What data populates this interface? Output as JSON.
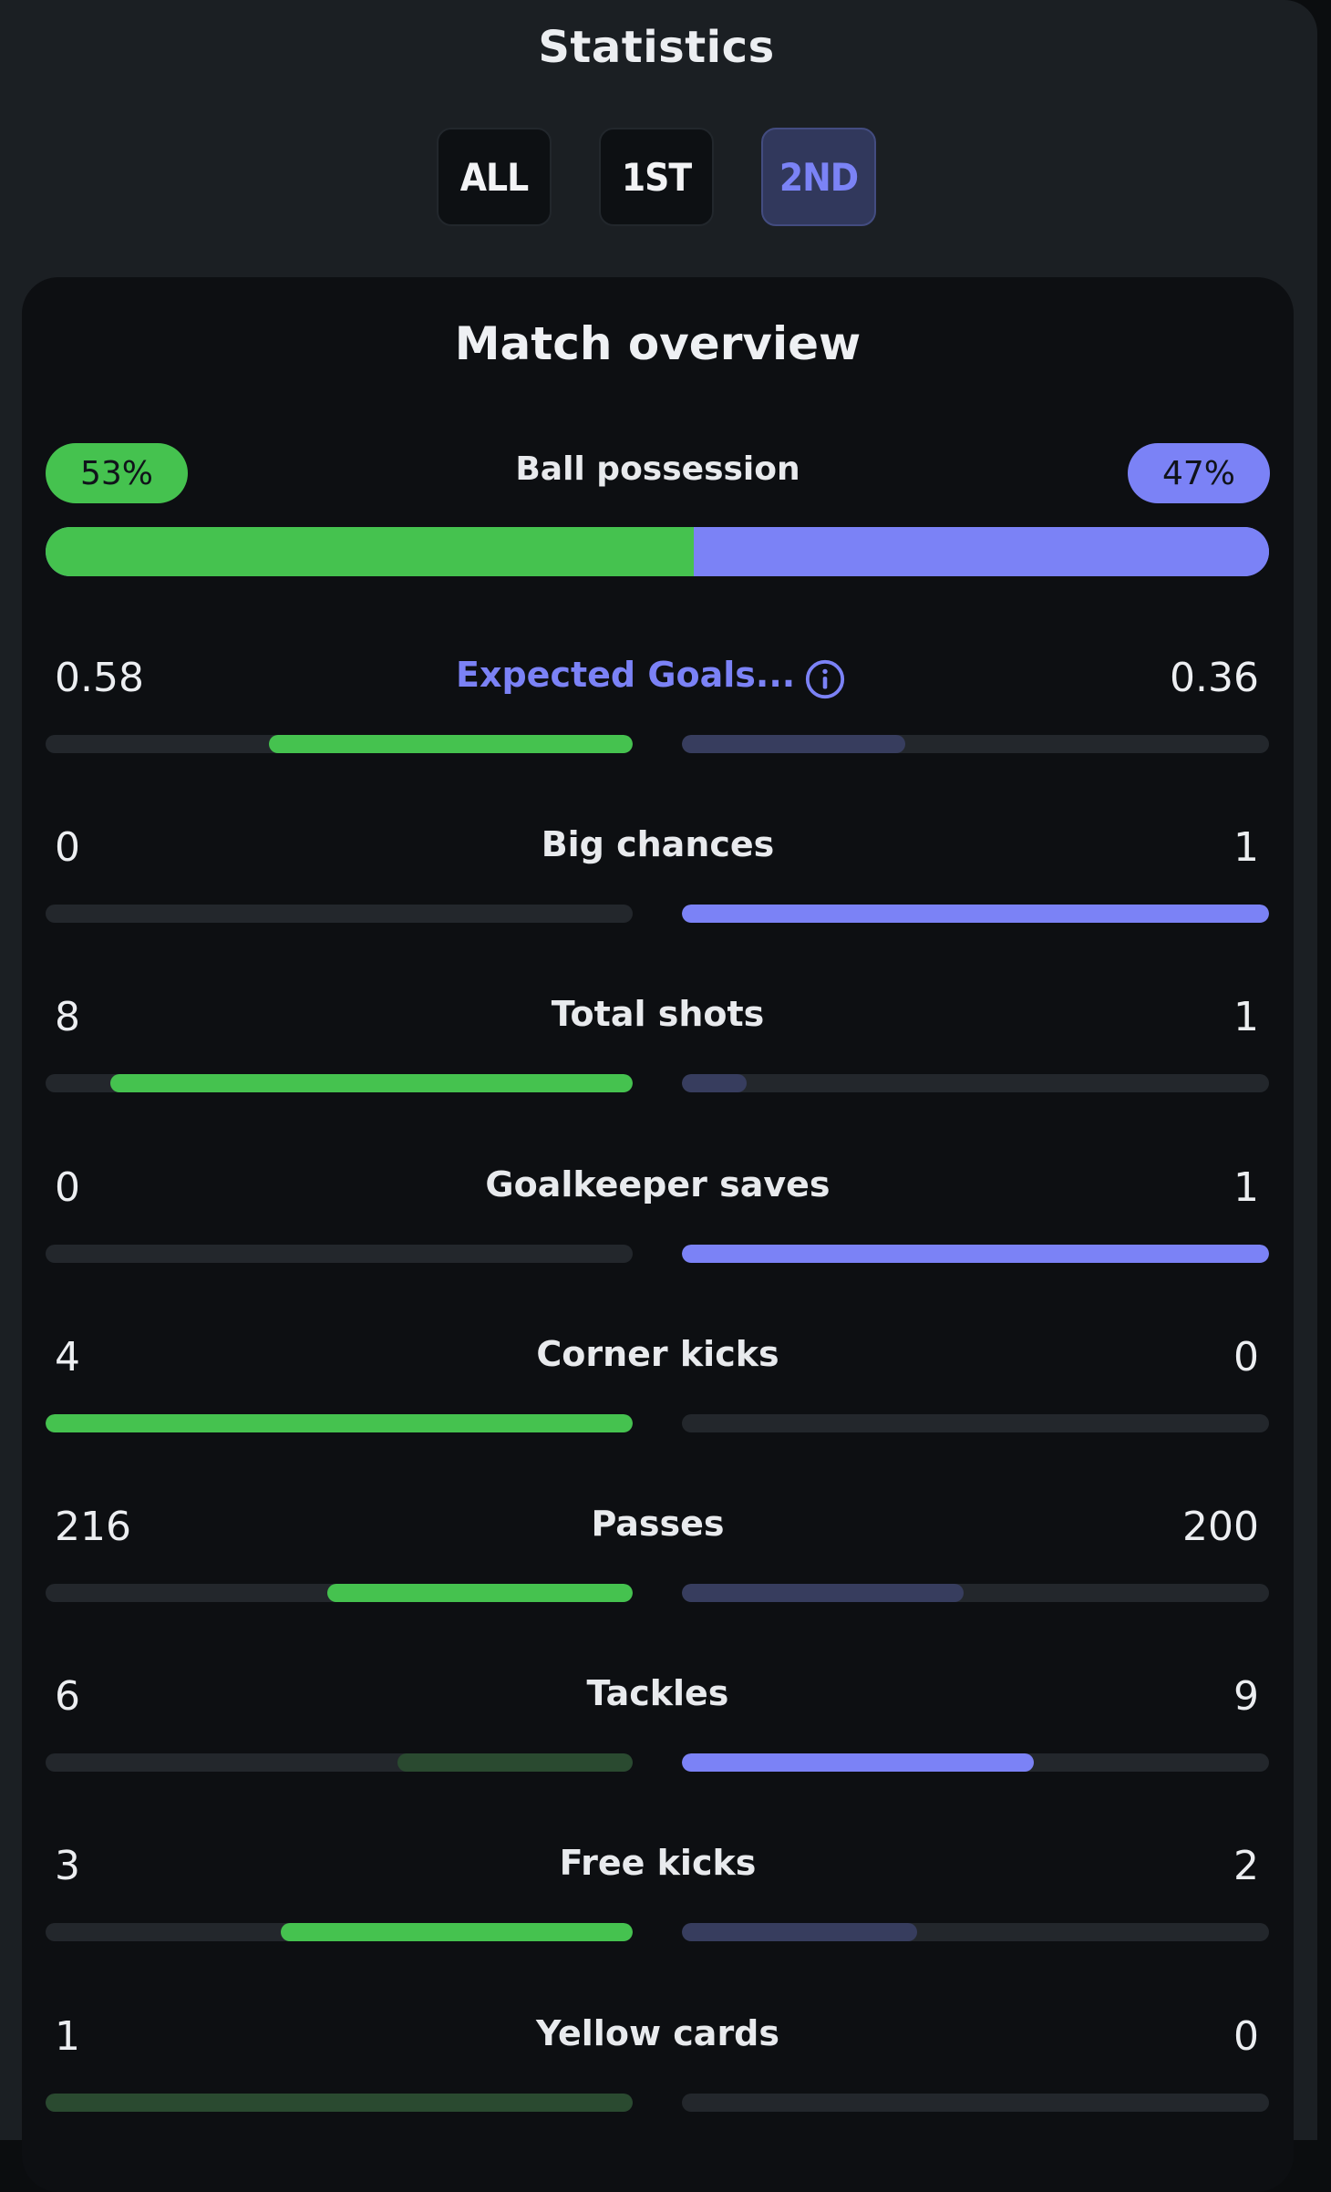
{
  "header": {
    "title": "Statistics"
  },
  "tabs": [
    {
      "label": "ALL",
      "active": false
    },
    {
      "label": "1ST",
      "active": false
    },
    {
      "label": "2ND",
      "active": true
    }
  ],
  "card": {
    "title": "Match overview"
  },
  "possession": {
    "label": "Ball possession",
    "home_text": "53%",
    "away_text": "47%",
    "home_fraction": 0.53
  },
  "colors": {
    "home": "#45c24f",
    "away": "#7b82f6",
    "home_dim": "#2a4a30",
    "away_dim": "#373d5e",
    "track": "#23272c"
  },
  "stats": [
    {
      "label": "Expected Goals...",
      "home": "0.58",
      "away": "0.36",
      "home_fill": 0.62,
      "away_fill": 0.38,
      "home_style": "bright",
      "away_style": "dim",
      "link": true,
      "icon": "info-icon"
    },
    {
      "label": "Big chances",
      "home": "0",
      "away": "1",
      "home_fill": 0,
      "away_fill": 1,
      "home_style": "bright",
      "away_style": "bright"
    },
    {
      "label": "Total shots",
      "home": "8",
      "away": "1",
      "home_fill": 0.89,
      "away_fill": 0.11,
      "home_style": "bright",
      "away_style": "dim"
    },
    {
      "label": "Goalkeeper saves",
      "home": "0",
      "away": "1",
      "home_fill": 0,
      "away_fill": 1,
      "home_style": "bright",
      "away_style": "bright"
    },
    {
      "label": "Corner kicks",
      "home": "4",
      "away": "0",
      "home_fill": 1,
      "away_fill": 0,
      "home_style": "bright",
      "away_style": "bright"
    },
    {
      "label": "Passes",
      "home": "216",
      "away": "200",
      "home_fill": 0.52,
      "away_fill": 0.48,
      "home_style": "bright",
      "away_style": "dim"
    },
    {
      "label": "Tackles",
      "home": "6",
      "away": "9",
      "home_fill": 0.4,
      "away_fill": 0.6,
      "home_style": "dim",
      "away_style": "bright"
    },
    {
      "label": "Free kicks",
      "home": "3",
      "away": "2",
      "home_fill": 0.6,
      "away_fill": 0.4,
      "home_style": "bright",
      "away_style": "dim"
    },
    {
      "label": "Yellow cards",
      "home": "1",
      "away": "0",
      "home_fill": 1,
      "away_fill": 0,
      "home_style": "dim",
      "away_style": "dim"
    }
  ]
}
